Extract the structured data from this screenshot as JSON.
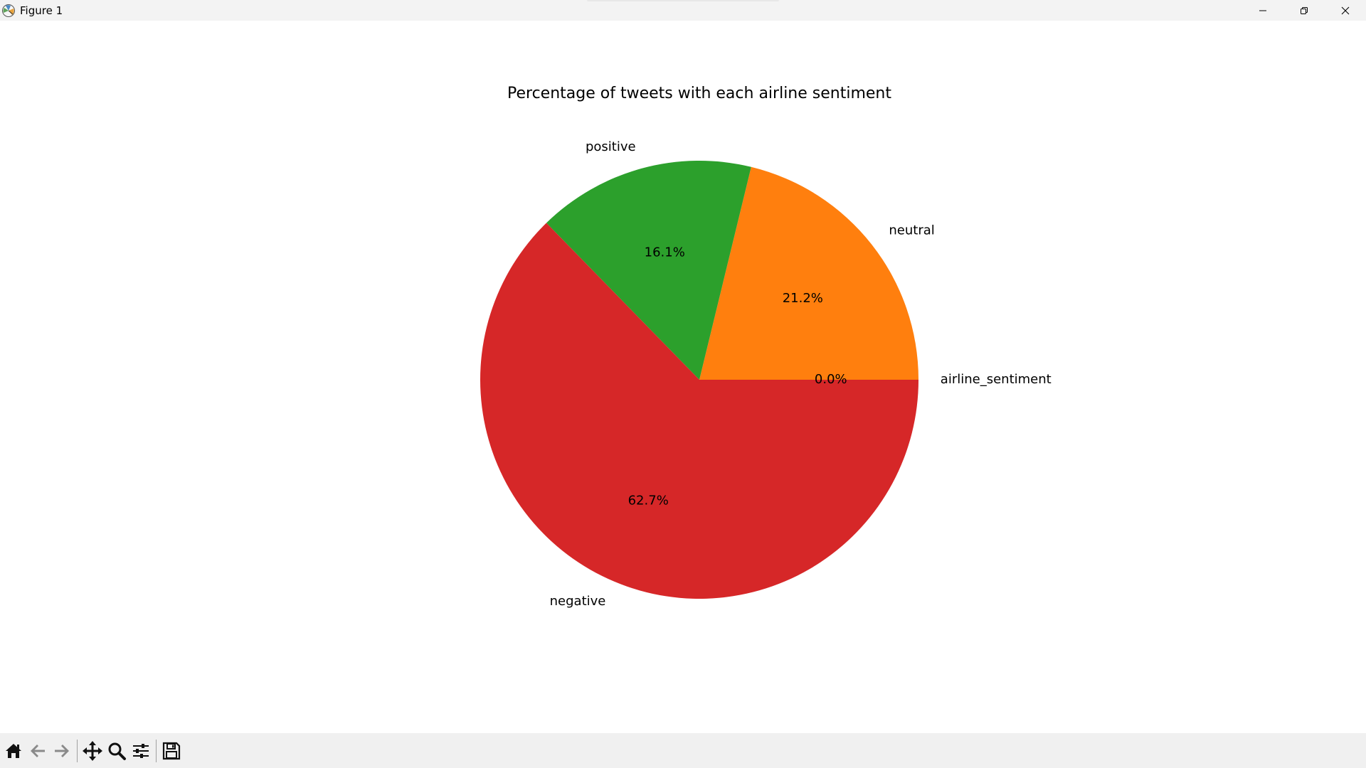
{
  "window": {
    "title": "Figure 1",
    "controls": [
      "minimize-icon",
      "restore-icon",
      "close-icon"
    ]
  },
  "toolbar": {
    "tools": [
      "home-icon",
      "back-arrow-icon",
      "forward-arrow-icon",
      "pan-icon",
      "zoom-icon",
      "configure-subplots-icon",
      "save-icon"
    ]
  },
  "chart_data": {
    "type": "pie",
    "title": "Percentage of tweets with each airline sentiment",
    "labels": [
      "airline_sentiment",
      "neutral",
      "positive",
      "negative"
    ],
    "values": [
      0.0,
      21.2,
      16.1,
      62.7
    ],
    "percent_labels": [
      "0.0%",
      "21.2%",
      "16.1%",
      "62.7%"
    ],
    "colors": [
      "#1f77b4",
      "#ff7f0e",
      "#2ca02c",
      "#d62728"
    ],
    "start_angle": 0,
    "direction": "counterclockwise",
    "legend": "none"
  }
}
